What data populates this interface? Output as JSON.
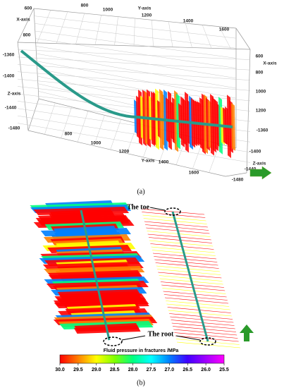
{
  "panel_a": {
    "labels": [
      "600",
      "800",
      "1000",
      "Y-axis",
      "1200",
      "1400",
      "1600",
      "X-axis",
      "800",
      "-1360",
      "-1400",
      "Z-axis",
      "-1440",
      "-1480",
      "800",
      "1000",
      "1200",
      "Y-axis",
      "1400",
      "1600",
      "600",
      "X-axis",
      "800",
      "1000",
      "1200",
      "-1360",
      "-1400",
      "Z-axis",
      "-1440",
      "-1480"
    ],
    "caption": "(a)"
  },
  "panel_b": {
    "toe_label": "The toe",
    "root_label": "The root",
    "caption": "(b)"
  },
  "colorbar": {
    "title": "Fluid pressure in fractures /MPa",
    "clim": [
      30,
      25.5
    ],
    "ticks": [
      {
        "value": 30,
        "label": "30.0"
      },
      {
        "value": 29.5,
        "label": "29.5"
      },
      {
        "value": 29,
        "label": "29.0"
      },
      {
        "value": 28.5,
        "label": "28.5"
      },
      {
        "value": 28,
        "label": "28.0"
      },
      {
        "value": 27.5,
        "label": "27.5"
      },
      {
        "value": 27,
        "label": "27.0"
      },
      {
        "value": 26.5,
        "label": "26.5"
      },
      {
        "value": 26,
        "label": "26.0"
      },
      {
        "value": 25.5,
        "label": "25.5"
      }
    ],
    "colors": [
      "#ff0000",
      "#ff8000",
      "#ffff00",
      "#80ff00",
      "#00ff80",
      "#00ffff",
      "#0080ff",
      "#4000ff",
      "#a000ff",
      "#ff00ff"
    ]
  }
}
